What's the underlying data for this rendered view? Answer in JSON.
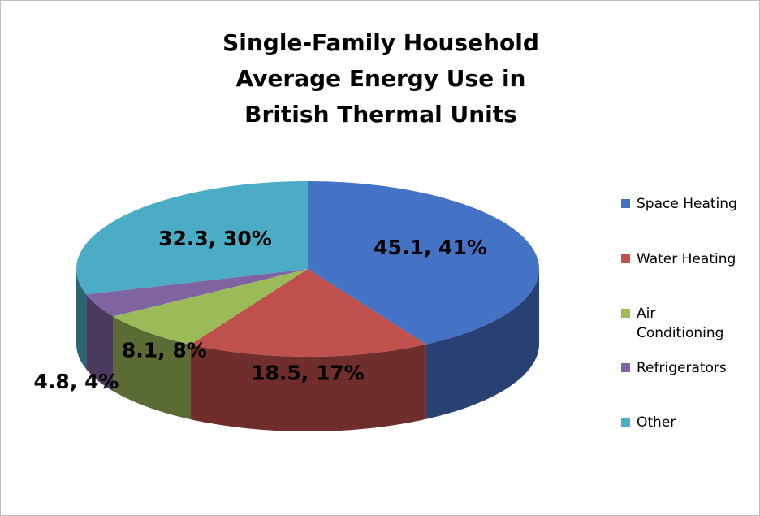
{
  "title_lines": [
    "Single-Family Household",
    "Average Energy Use in",
    "British Thermal Units"
  ],
  "chart_data": {
    "type": "pie",
    "style": "3d",
    "title": "Single-Family Household Average Energy Use in British Thermal Units",
    "legend_position": "right",
    "slices": [
      {
        "label": "Space Heating",
        "value": 45.1,
        "percent": 41,
        "data_label": "45.1, 41%",
        "color": "#4472c4"
      },
      {
        "label": "Water Heating",
        "value": 18.5,
        "percent": 17,
        "data_label": "18.5, 17%",
        "color": "#c0504d"
      },
      {
        "label": "Air Conditioning",
        "value": 8.1,
        "percent": 8,
        "data_label": "8.1, 8%",
        "color": "#9bbb59"
      },
      {
        "label": "Refrigerators",
        "value": 4.8,
        "percent": 4,
        "data_label": "4.8, 4%",
        "color": "#8064a2"
      },
      {
        "label": "Other",
        "value": 32.3,
        "percent": 30,
        "data_label": "32.3, 30%",
        "color": "#4bacc6"
      }
    ]
  },
  "legend": [
    {
      "label": "Space Heating",
      "color": "#4472c4"
    },
    {
      "label": "Water Heating",
      "color": "#c0504d"
    },
    {
      "label": "Air Conditioning",
      "color": "#9bbb59"
    },
    {
      "label": "Refrigerators",
      "color": "#8064a2"
    },
    {
      "label": "Other",
      "color": "#4bacc6"
    }
  ]
}
